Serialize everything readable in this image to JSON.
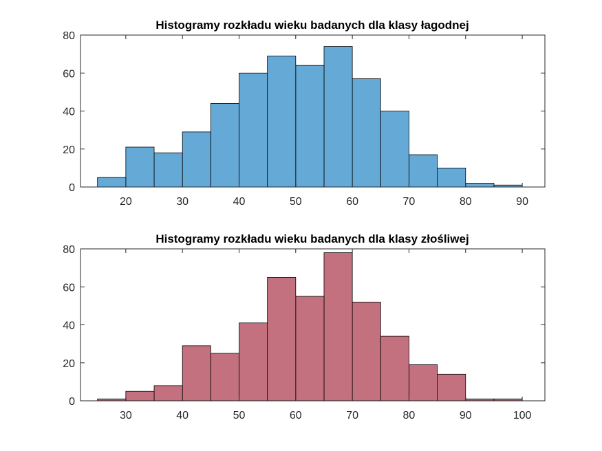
{
  "chart_data": [
    {
      "type": "bar",
      "title": "Histogramy rozkładu wieku badanych dla klasy łagodnej",
      "xlabel": "",
      "ylabel": "",
      "color": "#65a9d7",
      "bin_width": 5,
      "bin_edges_start": 15,
      "values": [
        5,
        21,
        18,
        29,
        44,
        60,
        69,
        64,
        74,
        57,
        40,
        17,
        10,
        2,
        1
      ],
      "xlim": [
        12,
        94
      ],
      "ylim": [
        0,
        80
      ],
      "xticks": [
        20,
        30,
        40,
        50,
        60,
        70,
        80,
        90
      ],
      "yticks": [
        0,
        20,
        40,
        60,
        80
      ],
      "grid": false
    },
    {
      "type": "bar",
      "title": "Histogramy rozkładu wieku badanych dla klasy złośliwej",
      "xlabel": "",
      "ylabel": "",
      "color": "#c4717f",
      "bin_width": 5,
      "bin_edges_start": 25,
      "values": [
        1,
        5,
        8,
        29,
        25,
        41,
        65,
        55,
        78,
        52,
        34,
        19,
        14,
        1,
        1
      ],
      "xlim": [
        22,
        104
      ],
      "ylim": [
        0,
        80
      ],
      "xticks": [
        30,
        40,
        50,
        60,
        70,
        80,
        90,
        100
      ],
      "yticks": [
        0,
        20,
        40,
        60,
        80
      ],
      "grid": false
    }
  ]
}
